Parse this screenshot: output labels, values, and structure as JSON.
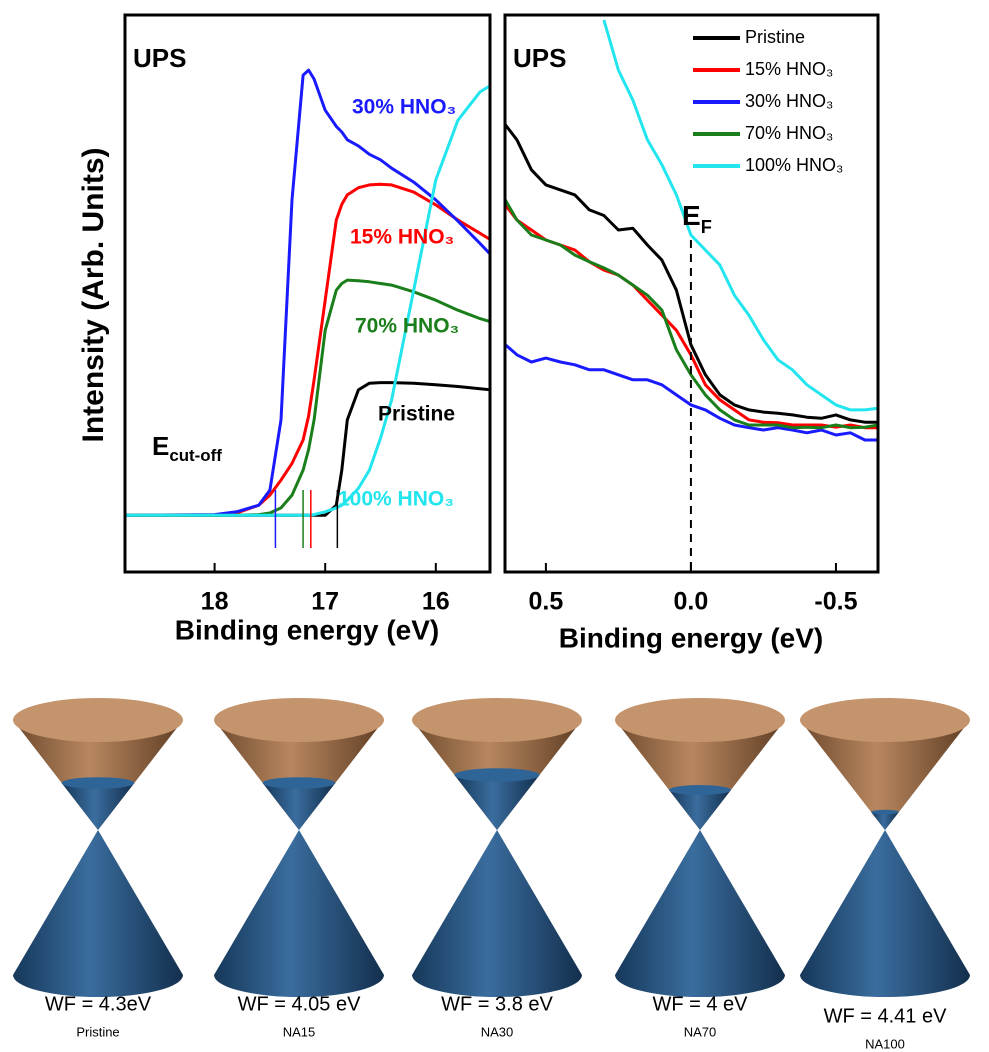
{
  "chart_data": [
    {
      "type": "line",
      "y_label": "Intensity (Arb. Units)",
      "x_label": "Binding energy (eV)",
      "annotations": [
        {
          "text": "UPS"
        },
        {
          "text": "E",
          "subscript": "cut-off"
        }
      ],
      "x": [
        18.8,
        18.0,
        17.8,
        17.6,
        17.5,
        17.4,
        17.3,
        17.2,
        17.15,
        17.1,
        17.0,
        16.9,
        16.85,
        16.8,
        16.7,
        16.6,
        16.5,
        16.4,
        16.2,
        16.0,
        15.8,
        15.6,
        15.5
      ],
      "xlim": [
        18.81,
        15.51
      ],
      "xticks": [
        18,
        17,
        16
      ],
      "ylim": [
        0,
        100
      ],
      "series": [
        {
          "name": "Pristine",
          "color": "#000000",
          "cutoff": 16.89,
          "values": [
            10.2,
            10.2,
            10.2,
            10.2,
            10.2,
            10.2,
            10.2,
            10.2,
            10.2,
            10.2,
            10.2,
            12,
            18.3,
            27.3,
            32.7,
            33.9,
            34,
            34,
            33.9,
            33.6,
            33.3,
            32.9,
            32.7
          ]
        },
        {
          "name": "15% HNO₃",
          "color": "#ff0000",
          "cutoff": 17.13,
          "values": [
            10.2,
            10.2,
            10.6,
            12.0,
            13.8,
            16.5,
            19.5,
            23.7,
            28,
            34.5,
            48.8,
            63.2,
            66,
            67.7,
            69,
            69.5,
            69.6,
            69.5,
            68.2,
            65.9,
            63.2,
            60.8,
            59.6
          ]
        },
        {
          "name": "30% HNO₃",
          "color": "#1a1aff",
          "cutoff": 17.45,
          "values": [
            10.2,
            10.3,
            10.8,
            12,
            14.7,
            27.3,
            66.8,
            89.2,
            90.1,
            88.5,
            82.9,
            80,
            79,
            77.6,
            76.5,
            75,
            74,
            72.5,
            70,
            66.8,
            63,
            59,
            56.9
          ]
        },
        {
          "name": "70% HNO₃",
          "color": "#1a7f1a",
          "cutoff": 17.2,
          "values": [
            10.2,
            10.2,
            10.2,
            10.3,
            10.6,
            11.5,
            13.8,
            18.3,
            22,
            27.3,
            43.4,
            50.6,
            51.8,
            52.4,
            52.3,
            52.1,
            51.8,
            51.5,
            50.3,
            48.8,
            47,
            45.5,
            44.9
          ]
        },
        {
          "name": "100% HNO₃",
          "color": "#22e5ee",
          "values": [
            10.2,
            10.2,
            10.2,
            10.2,
            10.2,
            10.2,
            10.2,
            10.2,
            10.2,
            10.3,
            10.8,
            11.5,
            12,
            12.9,
            15,
            18.3,
            24,
            30.9,
            50.6,
            70.4,
            81.1,
            86.2,
            87.4
          ]
        }
      ]
    },
    {
      "type": "line",
      "x_label": "Binding energy (eV)",
      "legend": "upper right",
      "annotations": [
        {
          "text": "UPS"
        },
        {
          "text": "E",
          "subscript": "F"
        }
      ],
      "fermi_x": 0,
      "x": [
        0.64,
        0.6,
        0.55,
        0.5,
        0.45,
        0.4,
        0.35,
        0.3,
        0.25,
        0.2,
        0.15,
        0.1,
        0.05,
        0,
        -0.05,
        -0.1,
        -0.15,
        -0.2,
        -0.25,
        -0.3,
        -0.35,
        -0.4,
        -0.45,
        -0.5,
        -0.55,
        -0.6,
        -0.645
      ],
      "xlim": [
        0.641,
        -0.645
      ],
      "xticks": [
        0.5,
        {
          "value": 0,
          "label": "0.0"
        },
        -0.5
      ],
      "ylim": [
        0,
        100
      ],
      "series": [
        {
          "name": "Pristine",
          "color": "#000000",
          "values": [
            80.3,
            77.6,
            72.2,
            69.5,
            68.6,
            67.7,
            65.0,
            64.0,
            61.4,
            61.7,
            58.7,
            56.0,
            50.6,
            40.8,
            35.4,
            31.8,
            30.0,
            29.1,
            28.7,
            28.5,
            28.2,
            27.8,
            27.6,
            28.2,
            27.3,
            26.9,
            26.9
          ]
        },
        {
          "name": "15% HNO₃",
          "color": "#ff0000",
          "values": [
            65.9,
            63.2,
            61.4,
            59.6,
            58.7,
            57.8,
            55.7,
            54.2,
            53.3,
            51.5,
            48.8,
            46.1,
            43.4,
            39.0,
            33.6,
            30.9,
            29.1,
            27.3,
            26.9,
            26.8,
            26.4,
            26.4,
            26.4,
            26.0,
            26.4,
            25.9,
            25.9
          ]
        },
        {
          "name": "30% HNO₃",
          "color": "#1a1aff",
          "values": [
            40.8,
            39.0,
            37.7,
            38.4,
            37.7,
            37.2,
            36.3,
            36.3,
            35.4,
            34.5,
            34.5,
            33.6,
            31.8,
            30.0,
            29.1,
            27.6,
            26.4,
            25.9,
            25.5,
            25.9,
            25.5,
            25.0,
            25.5,
            24.6,
            25.0,
            23.7,
            23.7
          ]
        },
        {
          "name": "70% HNO₃",
          "color": "#1a7f1a",
          "values": [
            66.8,
            63.2,
            60.5,
            59.6,
            58.7,
            56.9,
            55.7,
            54.6,
            53.3,
            51.5,
            49.7,
            47.0,
            39.9,
            35.4,
            31.8,
            29.1,
            27.3,
            26.4,
            26.4,
            26.4,
            25.9,
            26.0,
            25.9,
            26.4,
            25.9,
            26.0,
            26.4
          ]
        },
        {
          "name": "100% HNO₃",
          "color": "#22e5ee",
          "values": [
            null,
            null,
            null,
            null,
            null,
            null,
            null,
            99.1,
            90.1,
            84.7,
            77.6,
            73.1,
            67.7,
            60.5,
            57.8,
            55.1,
            49.7,
            46.1,
            41.7,
            38.1,
            36.3,
            33.6,
            31.8,
            30.0,
            29.1,
            29.1,
            29.4
          ]
        }
      ]
    }
  ],
  "diagram": {
    "panels": [
      {
        "label": "WF = 4.3eV",
        "name": "Pristine"
      },
      {
        "label": "WF = 4.05 eV",
        "name": "NA15"
      },
      {
        "label": "WF = 3.8 eV",
        "name": "NA30"
      },
      {
        "label": "WF = 4 eV",
        "name": "NA70"
      },
      {
        "label": "WF = 4.41 eV",
        "name": "NA100"
      }
    ]
  }
}
